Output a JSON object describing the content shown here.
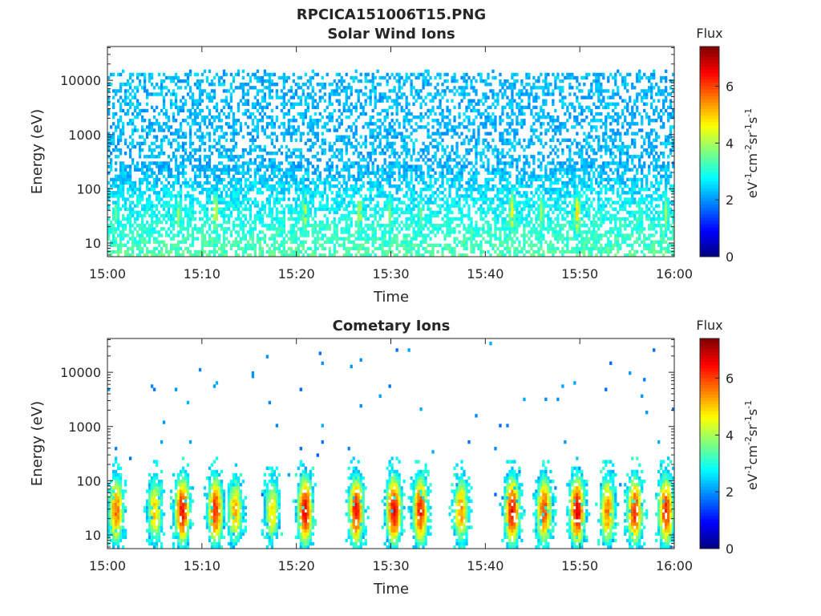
{
  "figure_title": "RPCICA151006T15.PNG",
  "chart_data": [
    {
      "type": "heatmap",
      "title": "Solar Wind Ions",
      "xlabel": "Time",
      "ylabel": "Energy (eV)",
      "x_ticks": [
        "15:00",
        "15:10",
        "15:20",
        "15:30",
        "15:40",
        "15:50",
        "16:00"
      ],
      "x_range_minutes": [
        0,
        60
      ],
      "y_scale": "log",
      "y_ticks": [
        10,
        100,
        1000,
        10000
      ],
      "y_tick_labels": [
        "10",
        "100",
        "1000",
        "10000"
      ],
      "ylim": [
        5.6,
        42000
      ],
      "colorbar": {
        "label": "Flux",
        "unit": "eV-1cm-2sr-1s-1",
        "ticks": [
          0,
          2,
          4,
          6
        ],
        "range": [
          0,
          7.4
        ],
        "colormap": "jet"
      },
      "pattern": "flux 2-3 (blue/cyan) spread across 10 eV to 15 keV with sparse points; low-energy (10-300 eV) green/yellow bursts of flux 3.5-5",
      "bursts": [
        {
          "t_min": 0.8,
          "flux": 3.6
        },
        {
          "t_min": 7.4,
          "flux": 4.0
        },
        {
          "t_min": 11.3,
          "flux": 4.4
        },
        {
          "t_min": 20.8,
          "flux": 4.3
        },
        {
          "t_min": 26.6,
          "flux": 4.3
        },
        {
          "t_min": 29.8,
          "flux": 3.8
        },
        {
          "t_min": 33.0,
          "flux": 3.6
        },
        {
          "t_min": 42.7,
          "flux": 4.6
        },
        {
          "t_min": 45.8,
          "flux": 4.0
        },
        {
          "t_min": 49.6,
          "flux": 4.9
        },
        {
          "t_min": 56.0,
          "flux": 3.6
        },
        {
          "t_min": 59.0,
          "flux": 4.0
        }
      ]
    },
    {
      "type": "heatmap",
      "title": "Cometary Ions",
      "xlabel": "Time",
      "ylabel": "Energy (eV)",
      "x_ticks": [
        "15:00",
        "15:10",
        "15:20",
        "15:30",
        "15:40",
        "15:50",
        "16:00"
      ],
      "x_range_minutes": [
        0,
        60
      ],
      "y_scale": "log",
      "y_ticks": [
        10,
        100,
        1000,
        10000
      ],
      "y_tick_labels": [
        "10",
        "100",
        "1000",
        "10000"
      ],
      "ylim": [
        5.6,
        42000
      ],
      "colorbar": {
        "label": "Flux",
        "unit": "eV-1cm-2sr-1s-1",
        "ticks": [
          0,
          2,
          4,
          6
        ],
        "range": [
          0,
          7.4
        ],
        "colormap": "jet"
      },
      "pattern": "intense low-energy bursts (10-400 eV) peaking at flux 6-7 near 20-40 eV; sparse scattered counts up to 30 keV",
      "bursts": [
        {
          "t_min": 0.8,
          "flux": 5.6
        },
        {
          "t_min": 4.9,
          "flux": 5.0
        },
        {
          "t_min": 7.8,
          "flux": 6.4
        },
        {
          "t_min": 11.3,
          "flux": 6.2
        },
        {
          "t_min": 13.4,
          "flux": 5.2
        },
        {
          "t_min": 17.3,
          "flux": 4.8
        },
        {
          "t_min": 20.8,
          "flux": 6.5
        },
        {
          "t_min": 26.2,
          "flux": 6.4
        },
        {
          "t_min": 30.2,
          "flux": 6.6
        },
        {
          "t_min": 33.0,
          "flux": 6.3
        },
        {
          "t_min": 37.3,
          "flux": 5.4
        },
        {
          "t_min": 42.7,
          "flux": 6.5
        },
        {
          "t_min": 46.1,
          "flux": 6.0
        },
        {
          "t_min": 49.6,
          "flux": 6.7
        },
        {
          "t_min": 52.8,
          "flux": 5.6
        },
        {
          "t_min": 55.7,
          "flux": 6.2
        },
        {
          "t_min": 59.0,
          "flux": 6.3
        }
      ]
    }
  ]
}
